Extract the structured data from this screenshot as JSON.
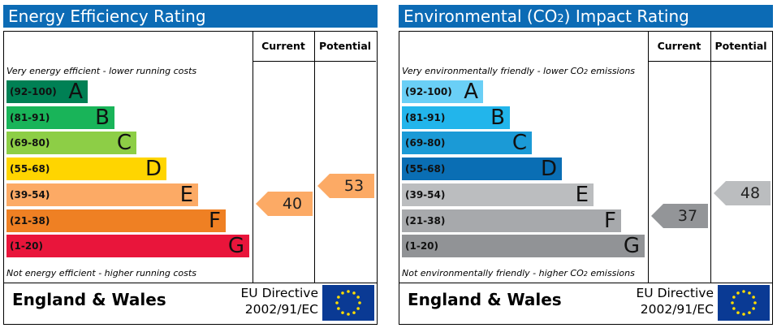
{
  "energy": {
    "title": "Energy Efficiency Rating",
    "col_current": "Current",
    "col_potential": "Potential",
    "top_caption": "Very energy efficient - lower running costs",
    "bottom_caption": "Not energy efficient - higher running costs",
    "bands": [
      {
        "range": "(92-100)",
        "letter": "A",
        "color": "#008054"
      },
      {
        "range": "(81-91)",
        "letter": "B",
        "color": "#19b459"
      },
      {
        "range": "(69-80)",
        "letter": "C",
        "color": "#8dce46"
      },
      {
        "range": "(55-68)",
        "letter": "D",
        "color": "#ffd500"
      },
      {
        "range": "(39-54)",
        "letter": "E",
        "color": "#fcaa65"
      },
      {
        "range": "(21-38)",
        "letter": "F",
        "color": "#ef8023"
      },
      {
        "range": "(1-20)",
        "letter": "G",
        "color": "#e9153b"
      }
    ],
    "current": {
      "value": "40",
      "color": "#fcaa65"
    },
    "potential": {
      "value": "53",
      "color": "#fcaa65"
    },
    "country": "England & Wales",
    "directive_line1": "EU Directive",
    "directive_line2": "2002/91/EC"
  },
  "environmental": {
    "title_pre": "Environmental (CO",
    "title_sub": "2",
    "title_post": ") Impact Rating",
    "col_current": "Current",
    "col_potential": "Potential",
    "top_caption_pre": "Very environmentally friendly - lower CO",
    "top_caption_sub": "2",
    "top_caption_post": " emissions",
    "bottom_caption_pre": "Not environmentally friendly - higher CO",
    "bottom_caption_sub": "2",
    "bottom_caption_post": " emissions",
    "bands": [
      {
        "range": "(92-100)",
        "letter": "A",
        "color": "#6acff6"
      },
      {
        "range": "(81-91)",
        "letter": "B",
        "color": "#22b5eb"
      },
      {
        "range": "(69-80)",
        "letter": "C",
        "color": "#1b9ad6"
      },
      {
        "range": "(55-68)",
        "letter": "D",
        "color": "#0a6eb4"
      },
      {
        "range": "(39-54)",
        "letter": "E",
        "color": "#bbbdbf"
      },
      {
        "range": "(21-38)",
        "letter": "F",
        "color": "#a7a9ac"
      },
      {
        "range": "(1-20)",
        "letter": "G",
        "color": "#919396"
      }
    ],
    "current": {
      "value": "37",
      "color": "#939598"
    },
    "potential": {
      "value": "48",
      "color": "#bbbdbf"
    },
    "country": "England & Wales",
    "directive_line1": "EU Directive",
    "directive_line2": "2002/91/EC"
  }
}
